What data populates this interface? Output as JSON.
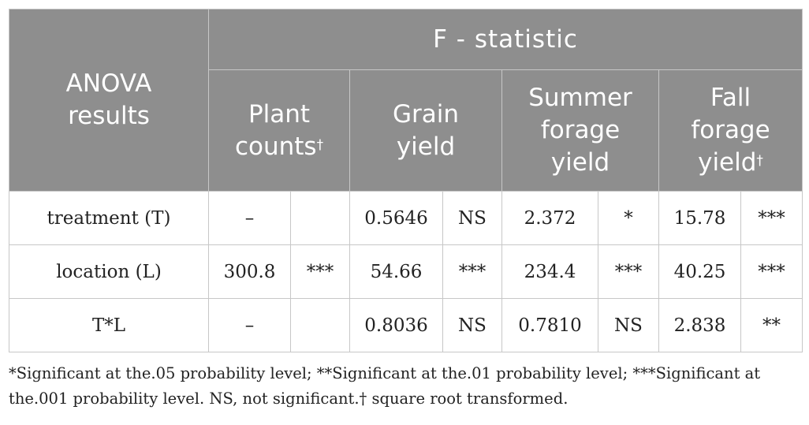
{
  "table": {
    "group_header": "F - statistic",
    "anova_header": [
      "ANOVA",
      "results"
    ],
    "columns": [
      {
        "lines": [
          "Plant",
          "counts"
        ],
        "dagger": "†"
      },
      {
        "lines": [
          "Grain",
          "yield"
        ],
        "dagger": ""
      },
      {
        "lines": [
          "Summer",
          "forage",
          "yield"
        ],
        "dagger": ""
      },
      {
        "lines": [
          "Fall",
          "forage",
          "yield"
        ],
        "dagger": "†"
      }
    ],
    "rows": [
      {
        "label": "treatment (T)",
        "cells": [
          "–",
          "",
          "0.5646",
          "NS",
          "2.372",
          "*",
          "15.78",
          "***"
        ]
      },
      {
        "label": "location (L)",
        "cells": [
          "300.8",
          "***",
          "54.66",
          "***",
          "234.4",
          "***",
          "40.25",
          "***"
        ]
      },
      {
        "label": "T*L",
        "cells": [
          "–",
          "",
          "0.8036",
          "NS",
          "0.7810",
          "NS",
          "2.838",
          "**"
        ]
      }
    ]
  },
  "footnote": "*Significant at the.05 probability level; **Significant at the.01 probability level; ***Significant at the.001 probability level. NS, not significant.† square root transformed."
}
